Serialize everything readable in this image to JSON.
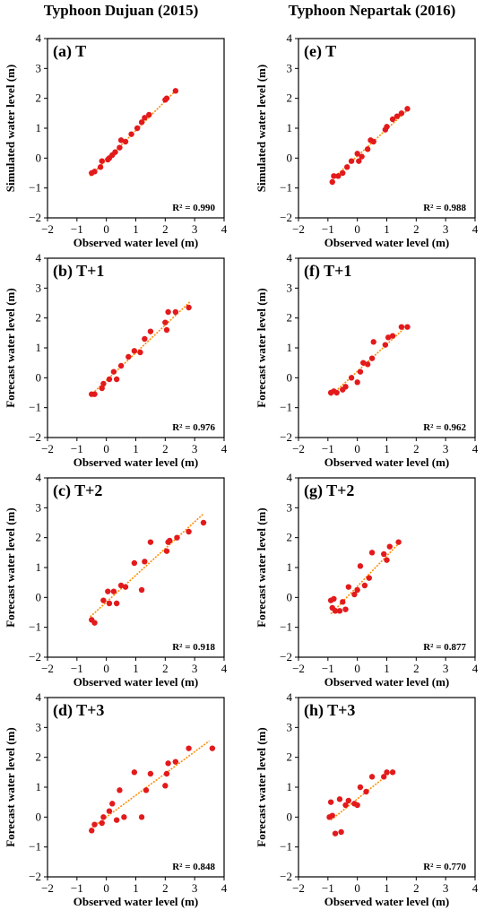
{
  "columns": [
    "Typhoon Dujuan (2015)",
    "Typhoon Nepartak (2016)"
  ],
  "chart_data": [
    {
      "type": "scatter",
      "label": "(a) T",
      "xlabel": "Observed water level (m)",
      "ylabel": "Simulated water level (m)",
      "r2": "R² = 0.990",
      "xlim": [
        -2,
        4
      ],
      "ylim": [
        -2,
        4
      ],
      "xticks": [
        -2,
        -1,
        0,
        1,
        2,
        3,
        4
      ],
      "yticks": [
        -2,
        -1,
        0,
        1,
        2,
        3,
        4
      ],
      "fit": [
        [
          -0.55,
          -0.6
        ],
        [
          2.4,
          2.3
        ]
      ],
      "points": [
        [
          -0.5,
          -0.5
        ],
        [
          -0.4,
          -0.45
        ],
        [
          -0.2,
          -0.3
        ],
        [
          -0.15,
          -0.1
        ],
        [
          0.05,
          -0.05
        ],
        [
          0.1,
          0.0
        ],
        [
          0.2,
          0.1
        ],
        [
          0.3,
          0.2
        ],
        [
          0.45,
          0.35
        ],
        [
          0.5,
          0.6
        ],
        [
          0.65,
          0.55
        ],
        [
          0.85,
          0.8
        ],
        [
          1.05,
          1.0
        ],
        [
          1.2,
          1.2
        ],
        [
          1.3,
          1.35
        ],
        [
          1.45,
          1.45
        ],
        [
          2.0,
          1.95
        ],
        [
          2.05,
          2.0
        ],
        [
          2.35,
          2.25
        ]
      ]
    },
    {
      "type": "scatter",
      "label": "(b) T+1",
      "xlabel": "Observed water level (m)",
      "ylabel": "Forecast water level (m)",
      "r2": "R² = 0.976",
      "xlim": [
        -2,
        4
      ],
      "ylim": [
        -2,
        4
      ],
      "xticks": [
        -2,
        -1,
        0,
        1,
        2,
        3,
        4
      ],
      "yticks": [
        -2,
        -1,
        0,
        1,
        2,
        3,
        4
      ],
      "fit": [
        [
          -0.55,
          -0.6
        ],
        [
          2.85,
          2.55
        ]
      ],
      "points": [
        [
          -0.5,
          -0.55
        ],
        [
          -0.4,
          -0.55
        ],
        [
          -0.15,
          -0.35
        ],
        [
          -0.1,
          -0.2
        ],
        [
          0.1,
          -0.05
        ],
        [
          0.25,
          0.2
        ],
        [
          0.35,
          -0.05
        ],
        [
          0.5,
          0.4
        ],
        [
          0.75,
          0.7
        ],
        [
          0.95,
          0.9
        ],
        [
          1.15,
          0.85
        ],
        [
          1.3,
          1.3
        ],
        [
          1.5,
          1.55
        ],
        [
          2.0,
          1.85
        ],
        [
          2.05,
          1.6
        ],
        [
          2.1,
          2.2
        ],
        [
          2.35,
          2.2
        ],
        [
          2.8,
          2.35
        ]
      ]
    },
    {
      "type": "scatter",
      "label": "(c) T+2",
      "xlabel": "Observed water level (m)",
      "ylabel": "Forecast water level (m)",
      "r2": "R² = 0.918",
      "xlim": [
        -2,
        4
      ],
      "ylim": [
        -2,
        4
      ],
      "xticks": [
        -2,
        -1,
        0,
        1,
        2,
        3,
        4
      ],
      "yticks": [
        -2,
        -1,
        0,
        1,
        2,
        3,
        4
      ],
      "fit": [
        [
          -0.55,
          -0.65
        ],
        [
          3.3,
          2.8
        ]
      ],
      "points": [
        [
          -0.5,
          -0.75
        ],
        [
          -0.4,
          -0.85
        ],
        [
          -0.1,
          -0.1
        ],
        [
          0.05,
          0.2
        ],
        [
          0.1,
          -0.2
        ],
        [
          0.25,
          0.2
        ],
        [
          0.35,
          -0.2
        ],
        [
          0.5,
          0.4
        ],
        [
          0.65,
          0.35
        ],
        [
          0.95,
          1.15
        ],
        [
          1.2,
          0.25
        ],
        [
          1.3,
          1.2
        ],
        [
          1.5,
          1.85
        ],
        [
          2.05,
          1.55
        ],
        [
          2.1,
          1.85
        ],
        [
          2.15,
          1.9
        ],
        [
          2.4,
          2.0
        ],
        [
          2.8,
          2.2
        ],
        [
          3.3,
          2.5
        ]
      ]
    },
    {
      "type": "scatter",
      "label": "(d) T+3",
      "xlabel": "Observed water level (m)",
      "ylabel": "Forecast water level (m)",
      "r2": "R² = 0.848",
      "xlim": [
        -2,
        4
      ],
      "ylim": [
        -2,
        4
      ],
      "xticks": [
        -2,
        -1,
        0,
        1,
        2,
        3,
        4
      ],
      "yticks": [
        -2,
        -1,
        0,
        1,
        2,
        3,
        4
      ],
      "fit": [
        [
          -0.55,
          -0.4
        ],
        [
          3.5,
          2.55
        ]
      ],
      "points": [
        [
          -0.5,
          -0.45
        ],
        [
          -0.4,
          -0.25
        ],
        [
          -0.15,
          -0.2
        ],
        [
          -0.1,
          0.0
        ],
        [
          0.1,
          0.2
        ],
        [
          0.2,
          0.45
        ],
        [
          0.35,
          -0.1
        ],
        [
          0.45,
          0.9
        ],
        [
          0.6,
          0.0
        ],
        [
          0.95,
          1.5
        ],
        [
          1.2,
          0.0
        ],
        [
          1.35,
          0.9
        ],
        [
          1.5,
          1.45
        ],
        [
          2.0,
          1.05
        ],
        [
          2.05,
          1.45
        ],
        [
          2.1,
          1.8
        ],
        [
          2.35,
          1.85
        ],
        [
          2.8,
          2.3
        ],
        [
          3.6,
          2.3
        ]
      ]
    },
    {
      "type": "scatter",
      "label": "(e) T",
      "xlabel": "Observed water level (m)",
      "ylabel": "Simulated water level (m)",
      "r2": "R² = 0.988",
      "xlim": [
        -2,
        4
      ],
      "ylim": [
        -2,
        4
      ],
      "xticks": [
        -2,
        -1,
        0,
        1,
        2,
        3,
        4
      ],
      "yticks": [
        -2,
        -1,
        0,
        1,
        2,
        3,
        4
      ],
      "fit": [
        [
          -0.9,
          -0.75
        ],
        [
          1.75,
          1.65
        ]
      ],
      "points": [
        [
          -0.85,
          -0.8
        ],
        [
          -0.8,
          -0.6
        ],
        [
          -0.65,
          -0.6
        ],
        [
          -0.5,
          -0.5
        ],
        [
          -0.35,
          -0.3
        ],
        [
          -0.2,
          -0.1
        ],
        [
          0.0,
          0.15
        ],
        [
          0.05,
          -0.1
        ],
        [
          0.15,
          0.05
        ],
        [
          0.35,
          0.3
        ],
        [
          0.45,
          0.6
        ],
        [
          0.55,
          0.55
        ],
        [
          0.95,
          0.95
        ],
        [
          1.0,
          1.05
        ],
        [
          1.2,
          1.3
        ],
        [
          1.35,
          1.4
        ],
        [
          1.5,
          1.5
        ],
        [
          1.7,
          1.65
        ]
      ]
    },
    {
      "type": "scatter",
      "label": "(f) T+1",
      "xlabel": "Observed water level (m)",
      "ylabel": "Forecast water level (m)",
      "r2": "R² = 0.962",
      "xlim": [
        -2,
        4
      ],
      "ylim": [
        -2,
        4
      ],
      "xticks": [
        -2,
        -1,
        0,
        1,
        2,
        3,
        4
      ],
      "yticks": [
        -2,
        -1,
        0,
        1,
        2,
        3,
        4
      ],
      "fit": [
        [
          -0.9,
          -0.6
        ],
        [
          1.7,
          1.75
        ]
      ],
      "points": [
        [
          -0.9,
          -0.5
        ],
        [
          -0.8,
          -0.45
        ],
        [
          -0.7,
          -0.5
        ],
        [
          -0.5,
          -0.4
        ],
        [
          -0.4,
          -0.3
        ],
        [
          -0.2,
          0.0
        ],
        [
          0.0,
          -0.15
        ],
        [
          0.1,
          0.2
        ],
        [
          0.2,
          0.5
        ],
        [
          0.35,
          0.45
        ],
        [
          0.5,
          0.65
        ],
        [
          0.55,
          1.2
        ],
        [
          0.95,
          1.1
        ],
        [
          1.05,
          1.35
        ],
        [
          1.2,
          1.4
        ],
        [
          1.5,
          1.7
        ],
        [
          1.7,
          1.7
        ]
      ]
    },
    {
      "type": "scatter",
      "label": "(g) T+2",
      "xlabel": "Observed water level (m)",
      "ylabel": "Forecast water level (m)",
      "r2": "R² = 0.877",
      "xlim": [
        -2,
        4
      ],
      "ylim": [
        -2,
        4
      ],
      "xticks": [
        -2,
        -1,
        0,
        1,
        2,
        3,
        4
      ],
      "yticks": [
        -2,
        -1,
        0,
        1,
        2,
        3,
        4
      ],
      "fit": [
        [
          -0.9,
          -0.55
        ],
        [
          1.45,
          1.85
        ]
      ],
      "points": [
        [
          -0.9,
          -0.1
        ],
        [
          -0.85,
          -0.35
        ],
        [
          -0.8,
          -0.05
        ],
        [
          -0.75,
          -0.45
        ],
        [
          -0.6,
          -0.45
        ],
        [
          -0.5,
          -0.15
        ],
        [
          -0.4,
          -0.4
        ],
        [
          -0.3,
          0.35
        ],
        [
          -0.1,
          0.1
        ],
        [
          0.0,
          0.25
        ],
        [
          0.1,
          1.05
        ],
        [
          0.25,
          0.4
        ],
        [
          0.4,
          0.65
        ],
        [
          0.5,
          1.5
        ],
        [
          0.9,
          1.45
        ],
        [
          1.0,
          1.25
        ],
        [
          1.1,
          1.7
        ],
        [
          1.4,
          1.85
        ]
      ]
    },
    {
      "type": "scatter",
      "label": "(h) T+3",
      "xlabel": "Observed water level (m)",
      "ylabel": "Forecast water level (m)",
      "r2": "R² = 0.770",
      "xlim": [
        -2,
        4
      ],
      "ylim": [
        -2,
        4
      ],
      "xticks": [
        -2,
        -1,
        0,
        1,
        2,
        3,
        4
      ],
      "yticks": [
        -2,
        -1,
        0,
        1,
        2,
        3,
        4
      ],
      "fit": [
        [
          -0.9,
          -0.1
        ],
        [
          1.2,
          1.55
        ]
      ],
      "points": [
        [
          -0.95,
          0.0
        ],
        [
          -0.9,
          0.5
        ],
        [
          -0.85,
          0.05
        ],
        [
          -0.75,
          -0.55
        ],
        [
          -0.6,
          0.6
        ],
        [
          -0.55,
          -0.5
        ],
        [
          -0.4,
          0.4
        ],
        [
          -0.3,
          0.55
        ],
        [
          -0.1,
          0.45
        ],
        [
          0.0,
          0.4
        ],
        [
          0.1,
          1.0
        ],
        [
          0.3,
          0.85
        ],
        [
          0.5,
          1.35
        ],
        [
          0.9,
          1.35
        ],
        [
          1.0,
          1.5
        ],
        [
          1.2,
          1.5
        ]
      ]
    }
  ],
  "colors": {
    "point": "#e31a1c",
    "fit": "#ff8c00",
    "axis": "#000000"
  }
}
